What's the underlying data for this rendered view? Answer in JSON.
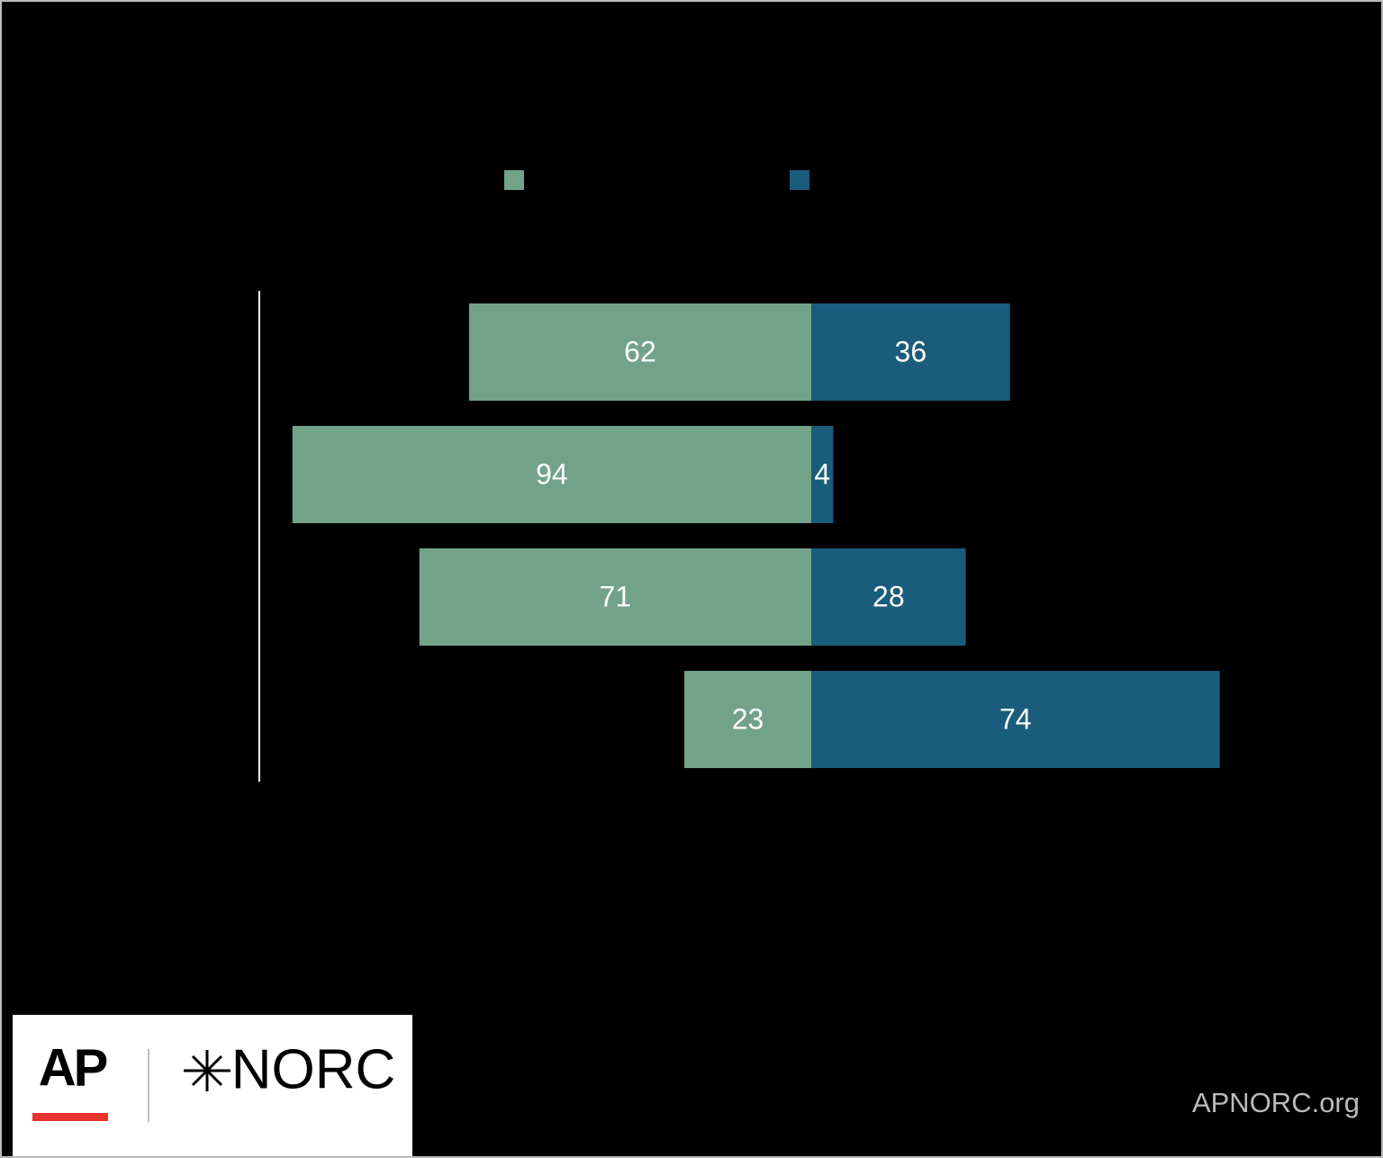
{
  "chart_data": {
    "type": "diverging_bar",
    "categories": [
      null,
      null,
      null,
      null
    ],
    "series": [
      {
        "color": "#72a288",
        "values": [
          62,
          94,
          71,
          23
        ]
      },
      {
        "color": "#1a5c7c",
        "values": [
          36,
          4,
          28,
          74
        ]
      }
    ]
  },
  "footer": {
    "logo_left": "AP",
    "logo_right": "NORC",
    "source": "APNORC.org"
  }
}
